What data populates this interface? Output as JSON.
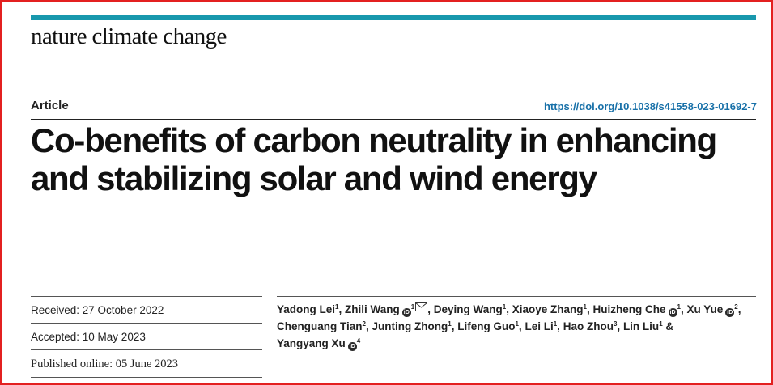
{
  "journal": "nature climate change",
  "article_type": "Article",
  "doi": "https://doi.org/10.1038/s41558-023-01692-7",
  "title": "Co-benefits of carbon neutrality in enhancing and stabilizing solar and wind energy",
  "dates": {
    "received": "Received: 27 October 2022",
    "accepted": "Accepted: 10 May 2023",
    "published": "Published online: 05 June 2023"
  },
  "authors": [
    {
      "name": "Yadong Lei",
      "aff": "1",
      "orcid": false,
      "mail": false,
      "sep": ","
    },
    {
      "name": "Zhili Wang",
      "aff": "1",
      "orcid": true,
      "mail": true,
      "sep": ","
    },
    {
      "name": "Deying Wang",
      "aff": "1",
      "orcid": false,
      "mail": false,
      "sep": ","
    },
    {
      "name": "Xiaoye Zhang",
      "aff": "1",
      "orcid": false,
      "mail": false,
      "sep": ","
    },
    {
      "name": "Huizheng Che",
      "aff": "1",
      "orcid": true,
      "mail": false,
      "sep": ","
    },
    {
      "name": "Xu Yue",
      "aff": "2",
      "orcid": true,
      "mail": false,
      "sep": ","
    },
    {
      "name": "Chenguang Tian",
      "aff": "2",
      "orcid": false,
      "mail": false,
      "sep": ","
    },
    {
      "name": "Junting Zhong",
      "aff": "1",
      "orcid": false,
      "mail": false,
      "sep": ","
    },
    {
      "name": "Lifeng Guo",
      "aff": "1",
      "orcid": false,
      "mail": false,
      "sep": ","
    },
    {
      "name": "Lei Li",
      "aff": "1",
      "orcid": false,
      "mail": false,
      "sep": ","
    },
    {
      "name": "Hao Zhou",
      "aff": "3",
      "orcid": false,
      "mail": false,
      "sep": ","
    },
    {
      "name": "Lin Liu",
      "aff": "1",
      "orcid": false,
      "mail": false,
      "sep": " &"
    },
    {
      "name": "Yangyang Xu",
      "aff": "4",
      "orcid": true,
      "mail": false,
      "sep": ""
    }
  ],
  "icons": {
    "orcid": "orcid-icon",
    "mail": "mail-icon"
  }
}
